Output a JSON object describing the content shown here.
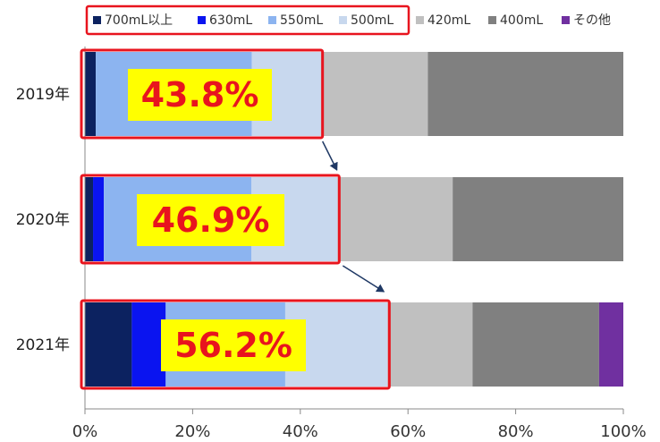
{
  "chart_data": {
    "type": "bar",
    "orientation": "horizontal",
    "stacked": true,
    "categories": [
      "2019年",
      "2020年",
      "2021年"
    ],
    "series": [
      {
        "name": "700mL以上",
        "color": "#0c2260",
        "values": [
          2.0,
          1.5,
          8.7
        ]
      },
      {
        "name": "630mL",
        "color": "#0a14f0",
        "values": [
          0.0,
          2.0,
          6.3
        ]
      },
      {
        "name": "550mL",
        "color": "#8cb4f0",
        "values": [
          29.0,
          27.4,
          22.2
        ]
      },
      {
        "name": "500mL",
        "color": "#c8d8ee",
        "values": [
          12.8,
          16.0,
          19.0
        ]
      },
      {
        "name": "420mL",
        "color": "#c0c0c0",
        "values": [
          19.9,
          21.4,
          15.8
        ]
      },
      {
        "name": "400mL",
        "color": "#808080",
        "values": [
          36.3,
          31.7,
          23.5
        ]
      },
      {
        "name": "その他",
        "color": "#7030a0",
        "values": [
          0.0,
          0.0,
          4.5
        ]
      }
    ],
    "callouts": [
      "43.8%",
      "46.9%",
      "56.2%"
    ],
    "xlim": [
      0,
      100
    ],
    "xticks": [
      "0%",
      "20%",
      "40%",
      "60%",
      "80%",
      "100%"
    ],
    "grid": false,
    "legend_position": "top"
  }
}
